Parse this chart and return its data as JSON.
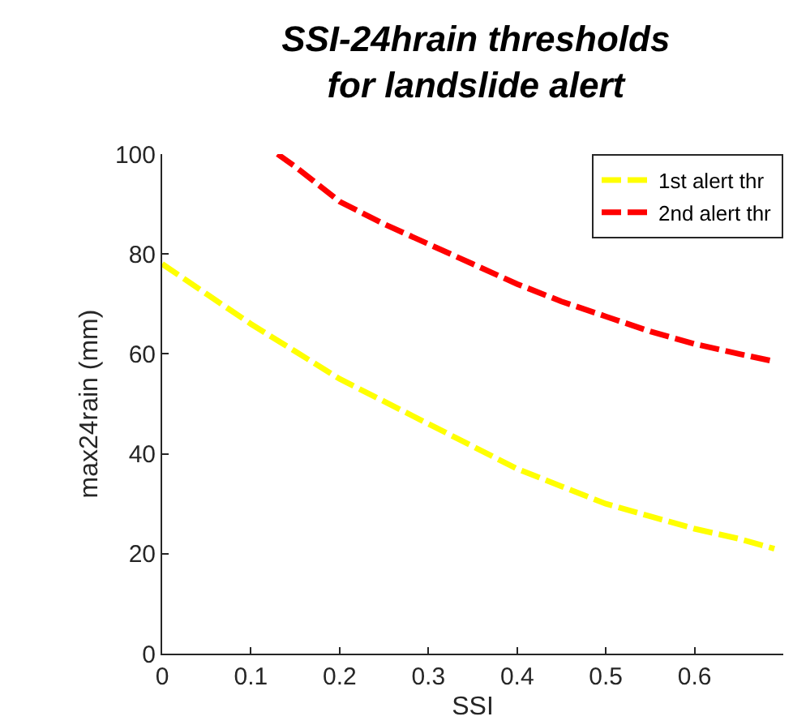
{
  "chart_data": {
    "type": "line",
    "title": "SSI-24hrain thresholds\nfor landslide alert",
    "xlabel": "SSI",
    "ylabel": "max24rain (mm)",
    "xlim": [
      0,
      0.7
    ],
    "xticks": [
      0,
      0.1,
      0.2,
      0.3,
      0.4,
      0.5,
      0.6
    ],
    "ylim": [
      0,
      100
    ],
    "yticks": [
      0,
      20,
      40,
      60,
      80,
      100
    ],
    "grid": false,
    "legend": "top right",
    "line_style": "dashed",
    "series": [
      {
        "name": "1st alert thr",
        "color": "#ffff00",
        "x": [
          0,
          0.05,
          0.1,
          0.15,
          0.2,
          0.25,
          0.3,
          0.35,
          0.4,
          0.45,
          0.5,
          0.55,
          0.6,
          0.65,
          0.69
        ],
        "values": [
          78,
          72,
          66,
          60.5,
          55,
          50.5,
          46,
          41.5,
          37,
          33.5,
          30,
          27.5,
          25,
          23,
          21
        ]
      },
      {
        "name": "2nd alert thr",
        "color": "#ff0000",
        "x": [
          0.13,
          0.15,
          0.2,
          0.25,
          0.3,
          0.35,
          0.4,
          0.45,
          0.5,
          0.55,
          0.6,
          0.65,
          0.69
        ],
        "values": [
          100,
          97.5,
          90.5,
          86,
          82,
          78,
          74,
          70.5,
          67.5,
          64.5,
          62,
          60,
          58.5
        ]
      }
    ]
  }
}
